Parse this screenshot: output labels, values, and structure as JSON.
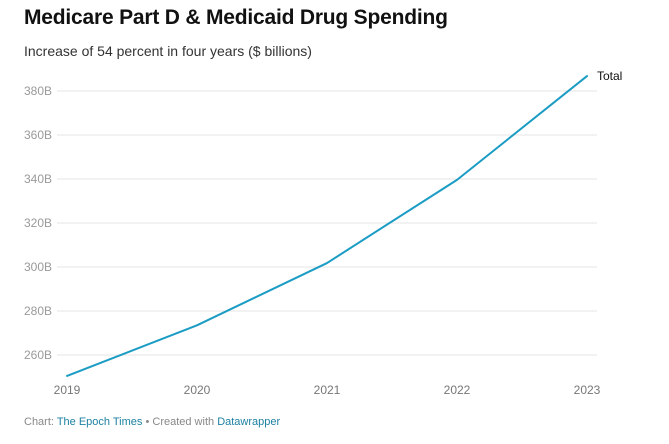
{
  "chart_data": {
    "type": "line",
    "title": "Medicare Part D & Medicaid Drug Spending",
    "subtitle": "Increase of 54 percent in four years ($ billions)",
    "xlabel": "",
    "ylabel": "",
    "x": [
      "2019",
      "2020",
      "2021",
      "2022",
      "2023"
    ],
    "series": [
      {
        "name": "Total",
        "values": [
          250.5,
          273.5,
          301.8,
          339.6,
          386.8
        ],
        "color": "#1a9cc4"
      }
    ],
    "ylim": [
      250,
      390
    ],
    "yticks": [
      260,
      280,
      300,
      320,
      340,
      360,
      380
    ],
    "ytick_labels": [
      "260B",
      "280B",
      "300B",
      "320B",
      "340B",
      "360B",
      "380B"
    ],
    "grid": true,
    "legend": "direct label at line end (right)"
  },
  "footer": {
    "prefix": "Chart: ",
    "source": "The Epoch Times",
    "separator": " • Created with ",
    "tool": "Datawrapper"
  }
}
